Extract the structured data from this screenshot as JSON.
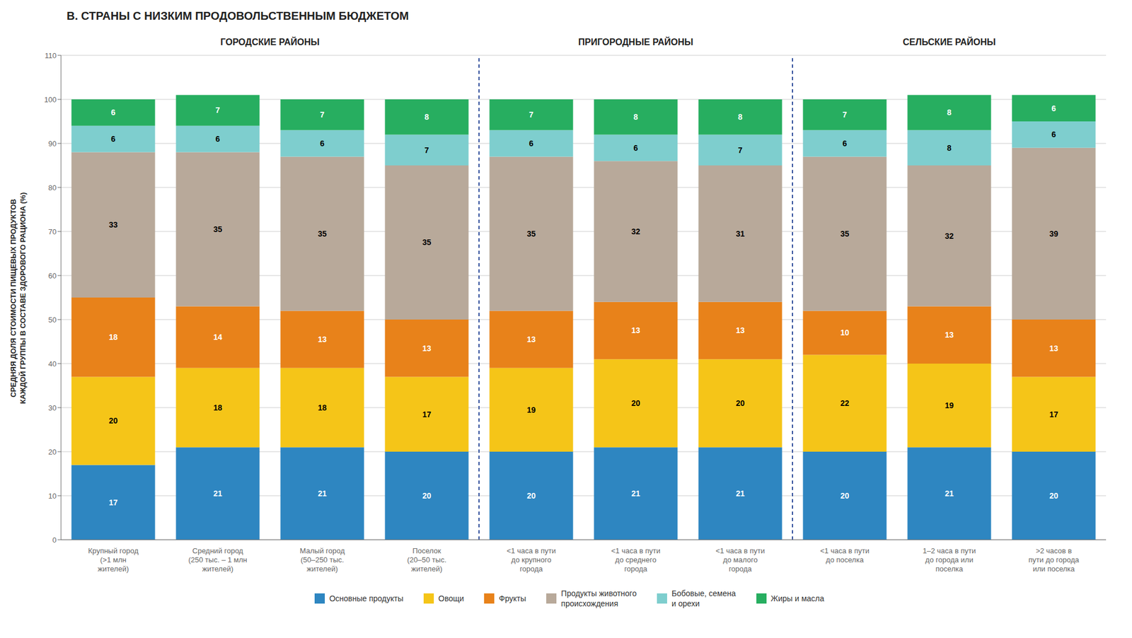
{
  "chart_data": {
    "type": "bar",
    "title": "В. СТРАНЫ С НИЗКИМ ПРОДОВОЛЬСТВЕННЫМ БЮДЖЕТОМ",
    "y_label": "СРЕДНЯЯ ДОЛЯ СТОИМОСТИ ПИЩЕВЫХ ПРОДУКТОВ\nКАЖДОЙ ГРУППЫ В СОСТАВЕ ЗДОРОВОГО РАЦИОНА (%)",
    "annotations": [
      "ГОРОДСКИЕ РАЙОНЫ",
      "ПРИГОРОДНЫЕ РАЙОНЫ",
      "СЕЛЬСКИЕ РАЙОНЫ"
    ],
    "categories": [
      "Крупный город\n(>1 млн\nжителей)",
      "Средний город\n(250 тыс. – 1 млн\nжителей)",
      "Малый город\n(50–250 тыс.\nжителей)",
      "Поселок\n(20–50 тыс.\nжителей)",
      "<1 часа в пути\nдо крупного\nгорода",
      "<1 часа в пути\nдо среднего\nгорода",
      "<1 часа в пути\nдо малого\nгорода",
      "<1 часа в пути\nдо поселка",
      "1–2 часа в пути\nдо города или\nпоселка",
      ">2 часов в\nпути до города\nили поселка"
    ],
    "series": [
      {
        "name": "Основные продукты",
        "color": "#2E86C1",
        "values": [
          17,
          21,
          21,
          20,
          20,
          21,
          21,
          20,
          21,
          20
        ]
      },
      {
        "name": "Овощи",
        "color": "#F5C518",
        "values": [
          20,
          18,
          18,
          17,
          19,
          20,
          20,
          22,
          19,
          17
        ]
      },
      {
        "name": "Фрукты",
        "color": "#E8821A",
        "values": [
          18,
          14,
          13,
          13,
          13,
          13,
          13,
          10,
          13,
          13
        ]
      },
      {
        "name": "Продукты животного\nпроисхождения",
        "color": "#B8A99A",
        "values": [
          33,
          35,
          35,
          35,
          35,
          32,
          31,
          35,
          32,
          39
        ]
      },
      {
        "name": "Бобовые, семена\nи орехи",
        "color": "#7ECECE",
        "values": [
          6,
          6,
          6,
          7,
          6,
          6,
          7,
          6,
          8,
          6
        ]
      },
      {
        "name": "Жиры и масла",
        "color": "#27AE60",
        "values": [
          6,
          7,
          7,
          8,
          7,
          8,
          8,
          7,
          8,
          6
        ]
      }
    ],
    "stacked": true,
    "data_labels": true,
    "ylim": [
      0,
      110
    ],
    "yticks": [
      0,
      10,
      20,
      30,
      40,
      50,
      60,
      70,
      80,
      90,
      100,
      110
    ],
    "grid": true,
    "legend": "bottom"
  }
}
